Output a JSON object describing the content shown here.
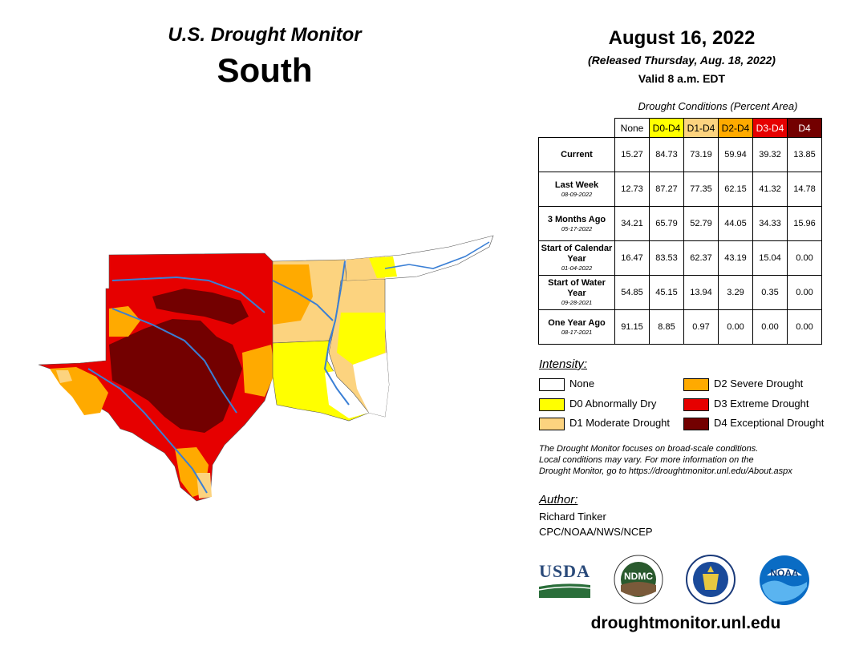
{
  "header": {
    "title": "U.S. Drought Monitor",
    "region": "South",
    "date": "August 16, 2022",
    "released": "(Released Thursday, Aug. 18, 2022)",
    "valid": "Valid 8 a.m. EDT"
  },
  "table": {
    "title": "Drought Conditions (Percent Area)",
    "columns": [
      {
        "label": "None",
        "color": "#ffffff",
        "text_color": "#000000"
      },
      {
        "label": "D0-D4",
        "color": "#ffff00",
        "text_color": "#000000"
      },
      {
        "label": "D1-D4",
        "color": "#fcd37f",
        "text_color": "#000000"
      },
      {
        "label": "D2-D4",
        "color": "#ffaa00",
        "text_color": "#000000"
      },
      {
        "label": "D3-D4",
        "color": "#e60000",
        "text_color": "#ffffff"
      },
      {
        "label": "D4",
        "color": "#730000",
        "text_color": "#ffffff"
      }
    ],
    "rows": [
      {
        "label": "Current",
        "sublabel": "",
        "values": [
          "15.27",
          "84.73",
          "73.19",
          "59.94",
          "39.32",
          "13.85"
        ]
      },
      {
        "label": "Last Week",
        "sublabel": "08-09-2022",
        "values": [
          "12.73",
          "87.27",
          "77.35",
          "62.15",
          "41.32",
          "14.78"
        ]
      },
      {
        "label": "3 Months Ago",
        "sublabel": "05-17-2022",
        "values": [
          "34.21",
          "65.79",
          "52.79",
          "44.05",
          "34.33",
          "15.96"
        ]
      },
      {
        "label": "Start of Calendar Year",
        "sublabel": "01-04-2022",
        "values": [
          "16.47",
          "83.53",
          "62.37",
          "43.19",
          "15.04",
          "0.00"
        ]
      },
      {
        "label": "Start of Water Year",
        "sublabel": "09-28-2021",
        "values": [
          "54.85",
          "45.15",
          "13.94",
          "3.29",
          "0.35",
          "0.00"
        ]
      },
      {
        "label": "One Year Ago",
        "sublabel": "08-17-2021",
        "values": [
          "91.15",
          "8.85",
          "0.97",
          "0.00",
          "0.00",
          "0.00"
        ]
      }
    ]
  },
  "legend": {
    "heading": "Intensity:",
    "items": [
      {
        "label": "None",
        "color": "#ffffff"
      },
      {
        "label": "D0 Abnormally Dry",
        "color": "#ffff00"
      },
      {
        "label": "D1 Moderate Drought",
        "color": "#fcd37f"
      },
      {
        "label": "D2 Severe Drought",
        "color": "#ffaa00"
      },
      {
        "label": "D3 Extreme Drought",
        "color": "#e60000"
      },
      {
        "label": "D4 Exceptional Drought",
        "color": "#730000"
      }
    ]
  },
  "note": {
    "line1": "The Drought Monitor focuses on broad-scale conditions.",
    "line2": "Local conditions may vary. For more information on the",
    "line3": "Drought Monitor, go to https://droughtmonitor.unl.edu/About.aspx"
  },
  "author": {
    "heading": "Author:",
    "name": "Richard Tinker",
    "org": "CPC/NOAA/NWS/NCEP"
  },
  "logos": {
    "usda": "USDA",
    "ndmc": "NDMC",
    "noaa": "NOAA"
  },
  "website": "droughtmonitor.unl.edu"
}
